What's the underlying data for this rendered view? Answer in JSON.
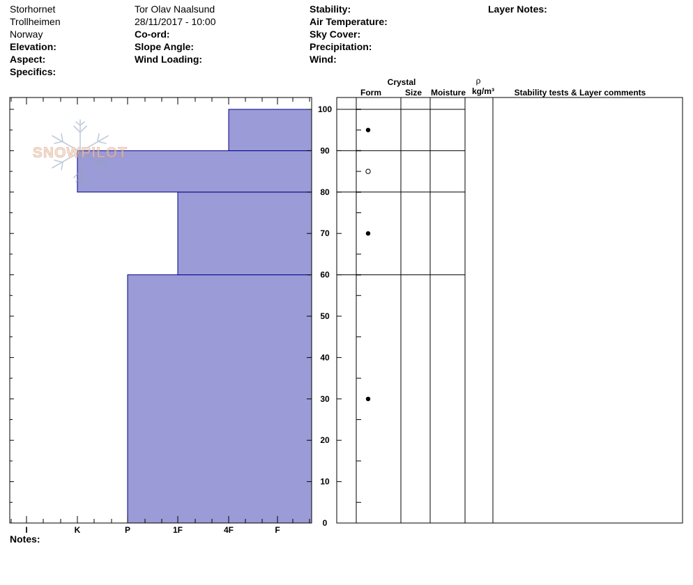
{
  "header": {
    "location": "Storhornet",
    "range": "Trollheimen",
    "country": "Norway",
    "elevation_label": "Elevation:",
    "aspect_label": "Aspect:",
    "specifics_label": "Specifics:",
    "observer": "Tor Olav Naalsund",
    "datetime": "28/11/2017 - 10:00",
    "coord_label": "Co-ord:",
    "slope_angle_label": "Slope Angle:",
    "wind_loading_label": "Wind Loading:",
    "stability_label": "Stability:",
    "air_temperature_label": "Air Temperature:",
    "sky_cover_label": "Sky Cover:",
    "precipitation_label": "Precipitation:",
    "wind_label": "Wind:",
    "layer_notes_label": "Layer Notes:"
  },
  "columns": {
    "crystal": "Crystal",
    "form": "Form",
    "size": "Size",
    "moisture": "Moisture",
    "rho": "ρ",
    "density_unit": "kg/m³",
    "stability_comments": "Stability tests & Layer comments"
  },
  "notes_label": "Notes:",
  "watermark": "SNOWPILOT",
  "colors": {
    "layer_fill": "#9b9bd7",
    "layer_stroke": "#00008b"
  },
  "chart_data": {
    "type": "bar",
    "title": "",
    "xlabel": "",
    "ylabel": "",
    "x_tick_labels": [
      "I",
      "K",
      "P",
      "1F",
      "4F",
      "F"
    ],
    "ylim": [
      0,
      100
    ],
    "y_ticks": [
      0,
      10,
      20,
      30,
      40,
      50,
      60,
      70,
      80,
      90,
      100
    ],
    "layers": [
      {
        "bottom": 0,
        "top": 60,
        "hardness": "P"
      },
      {
        "bottom": 60,
        "top": 80,
        "hardness": "1F"
      },
      {
        "bottom": 80,
        "top": 90,
        "hardness": "K"
      },
      {
        "bottom": 90,
        "top": 100,
        "hardness": "4F"
      }
    ],
    "layer_boundaries": [
      60,
      80,
      90,
      100
    ],
    "crystal_form_markers": [
      {
        "height": 95,
        "symbol": "●"
      },
      {
        "height": 85,
        "symbol": "○"
      },
      {
        "height": 70,
        "symbol": "●"
      },
      {
        "height": 30,
        "symbol": "●"
      }
    ]
  }
}
